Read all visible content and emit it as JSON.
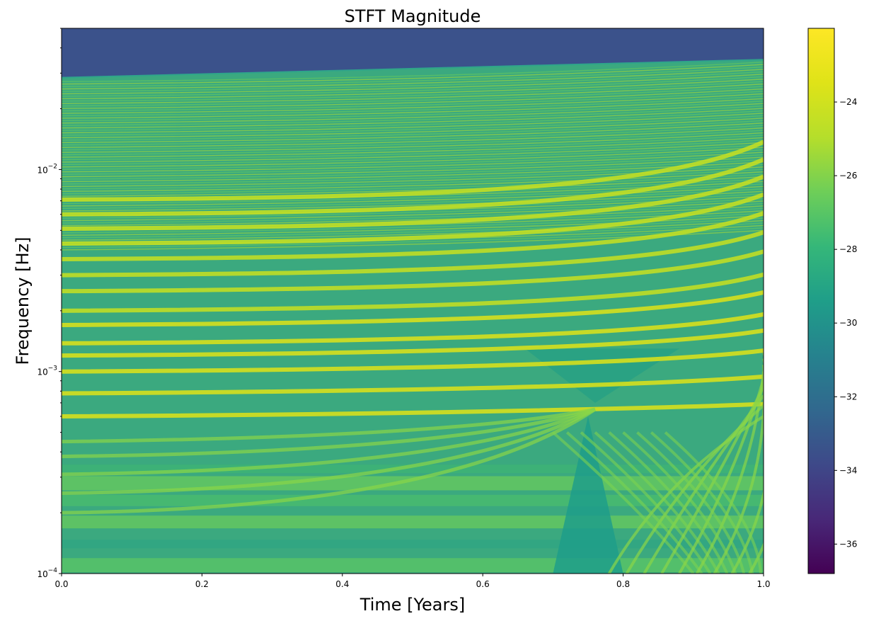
{
  "chart_data": {
    "type": "heatmap",
    "title": "STFT Magnitude",
    "xlabel": "Time [Years]",
    "ylabel": "Frequency [Hz]",
    "xlim": [
      0.0,
      1.0
    ],
    "ylim": [
      0.0001,
      0.05
    ],
    "yscale": "log",
    "colormap": "viridis",
    "color_range": [
      -36.8,
      -22.0
    ],
    "x_ticks": [
      {
        "value": 0.0,
        "label": "0.0"
      },
      {
        "value": 0.2,
        "label": "0.2"
      },
      {
        "value": 0.4,
        "label": "0.4"
      },
      {
        "value": 0.6,
        "label": "0.6"
      },
      {
        "value": 0.8,
        "label": "0.8"
      },
      {
        "value": 1.0,
        "label": "1.0"
      }
    ],
    "y_ticks": [
      {
        "value": 0.0001,
        "base": "10",
        "exp": "−4"
      },
      {
        "value": 0.001,
        "base": "10",
        "exp": "−3"
      },
      {
        "value": 0.01,
        "base": "10",
        "exp": "−2"
      }
    ],
    "colorbar_ticks": [
      {
        "value": -24,
        "label": "−24"
      },
      {
        "value": -26,
        "label": "−26"
      },
      {
        "value": -28,
        "label": "−28"
      },
      {
        "value": -30,
        "label": "−30"
      },
      {
        "value": -32,
        "label": "−32"
      },
      {
        "value": -34,
        "label": "−34"
      },
      {
        "value": -36,
        "label": "−36"
      }
    ]
  }
}
